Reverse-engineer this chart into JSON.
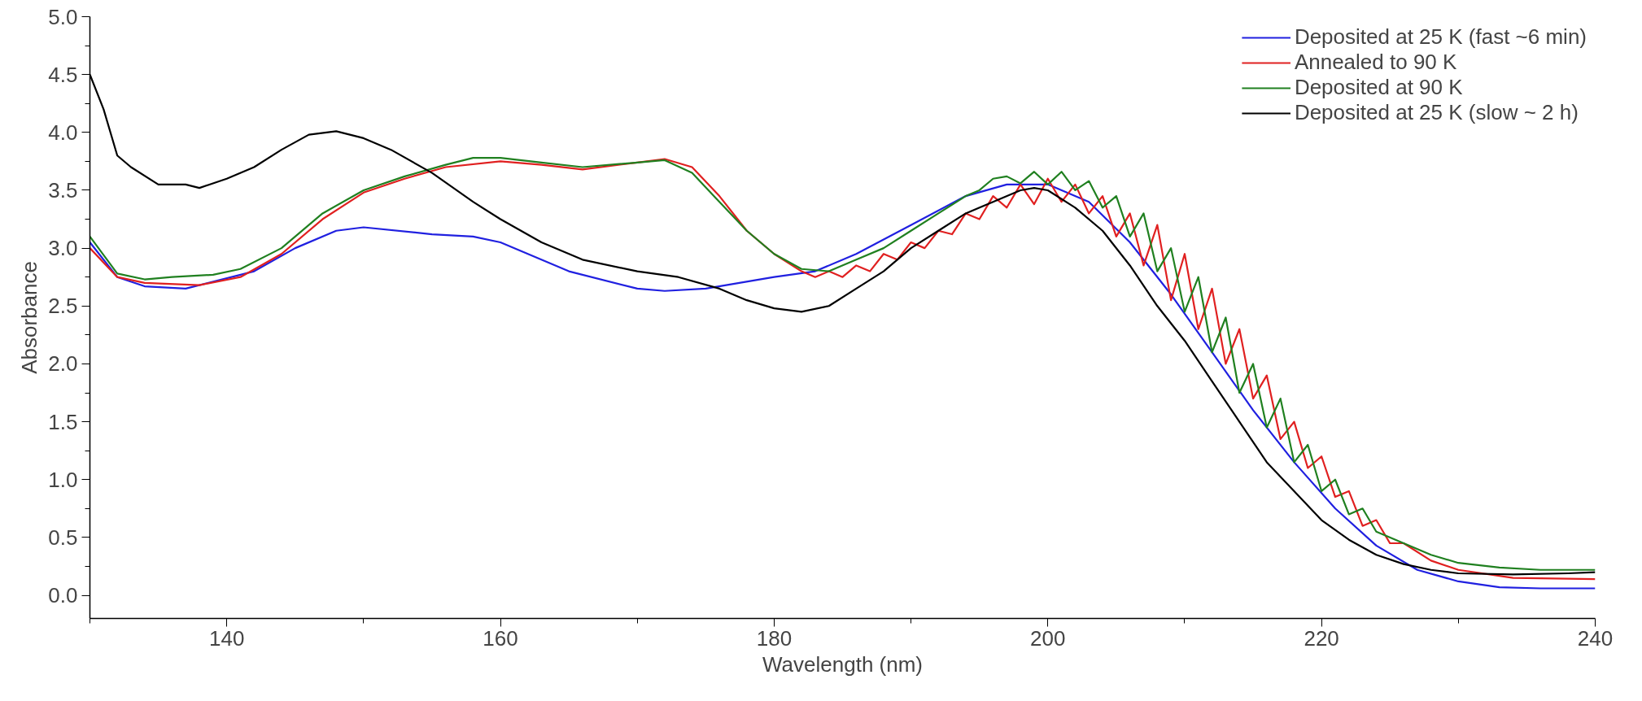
{
  "chart_data": {
    "type": "line",
    "xlabel": "Wavelength (nm)",
    "ylabel": "Absorbance",
    "xlim": [
      130,
      240
    ],
    "ylim": [
      -0.2,
      5.0
    ],
    "xticks": [
      {
        "value": 130,
        "label": null
      },
      140,
      {
        "value": 150,
        "label": null
      },
      160,
      {
        "value": 170,
        "label": null
      },
      180,
      {
        "value": 190,
        "label": null
      },
      200,
      {
        "value": 210,
        "label": null
      },
      220,
      {
        "value": 230,
        "label": null
      },
      240
    ],
    "yticks": [
      {
        "value": 0,
        "label": "0.0"
      },
      {
        "value": 0.25,
        "label": null
      },
      0.5,
      {
        "value": 0.75,
        "label": null
      },
      {
        "value": 1,
        "label": "1.0"
      },
      {
        "value": 1.25,
        "label": null
      },
      1.5,
      {
        "value": 1.75,
        "label": null
      },
      {
        "value": 2,
        "label": "2.0"
      },
      {
        "value": 2.25,
        "label": null
      },
      2.5,
      {
        "value": 2.75,
        "label": null
      },
      {
        "value": 3,
        "label": "3.0"
      },
      {
        "value": 3.25,
        "label": null
      },
      3.5,
      {
        "value": 3.75,
        "label": null
      },
      {
        "value": 4,
        "label": "4.0"
      },
      {
        "value": 4.25,
        "label": null
      },
      4.5,
      {
        "value": 4.75,
        "label": null
      },
      {
        "value": 5,
        "label": "5.0"
      }
    ],
    "grid": false,
    "legend": "top right",
    "line_style": "solid",
    "marker": "none",
    "series": [
      {
        "name": "Deposited at 25 K (fast ~6 min)",
        "color": "#2020e0",
        "x": [
          130,
          132,
          134,
          137,
          142,
          145,
          148,
          150,
          155,
          158,
          160,
          165,
          170,
          172,
          175,
          180,
          183,
          186,
          190,
          194,
          197,
          200,
          203,
          206,
          209,
          212,
          215,
          218,
          221,
          224,
          227,
          230,
          233,
          236,
          240
        ],
        "values": [
          3.05,
          2.75,
          2.67,
          2.65,
          2.8,
          3.0,
          3.15,
          3.18,
          3.12,
          3.1,
          3.05,
          2.8,
          2.65,
          2.63,
          2.65,
          2.75,
          2.8,
          2.95,
          3.2,
          3.45,
          3.55,
          3.55,
          3.4,
          3.05,
          2.6,
          2.1,
          1.6,
          1.15,
          0.75,
          0.43,
          0.22,
          0.12,
          0.07,
          0.06,
          0.06
        ]
      },
      {
        "name": "Annealed to 90 K",
        "color": "#e02020",
        "x": [
          130,
          132,
          134,
          138,
          141,
          144,
          147,
          150,
          153,
          156,
          160,
          163,
          166,
          170,
          172,
          174,
          176,
          178,
          180,
          182,
          183,
          184,
          185,
          186,
          187,
          188,
          189,
          190,
          191,
          192,
          193,
          194,
          195,
          196,
          197,
          198,
          199,
          200,
          201,
          202,
          203,
          204,
          205,
          206,
          207,
          208,
          209,
          210,
          211,
          212,
          213,
          214,
          215,
          216,
          217,
          218,
          219,
          220,
          221,
          222,
          223,
          224,
          225,
          226,
          228,
          230,
          234,
          240
        ],
        "values": [
          3.0,
          2.75,
          2.7,
          2.68,
          2.75,
          2.95,
          3.25,
          3.48,
          3.6,
          3.7,
          3.75,
          3.72,
          3.68,
          3.74,
          3.77,
          3.7,
          3.45,
          3.15,
          2.95,
          2.8,
          2.75,
          2.8,
          2.75,
          2.85,
          2.8,
          2.95,
          2.9,
          3.05,
          3.0,
          3.15,
          3.12,
          3.3,
          3.25,
          3.45,
          3.35,
          3.55,
          3.38,
          3.6,
          3.4,
          3.55,
          3.3,
          3.45,
          3.1,
          3.3,
          2.85,
          3.2,
          2.55,
          2.95,
          2.3,
          2.65,
          2.0,
          2.3,
          1.7,
          1.9,
          1.35,
          1.5,
          1.1,
          1.2,
          0.85,
          0.9,
          0.6,
          0.65,
          0.45,
          0.45,
          0.3,
          0.22,
          0.15,
          0.14
        ]
      },
      {
        "name": "Deposited at 90 K",
        "color": "#208020",
        "x": [
          130,
          132,
          134,
          136,
          139,
          141,
          144,
          147,
          150,
          153,
          156,
          158,
          160,
          163,
          166,
          170,
          172,
          174,
          176,
          178,
          180,
          182,
          184,
          186,
          188,
          190,
          192,
          194,
          195,
          196,
          197,
          198,
          199,
          200,
          201,
          202,
          203,
          204,
          205,
          206,
          207,
          208,
          209,
          210,
          211,
          212,
          213,
          214,
          215,
          216,
          217,
          218,
          219,
          220,
          221,
          222,
          223,
          224,
          226,
          228,
          230,
          233,
          236,
          240
        ],
        "values": [
          3.1,
          2.78,
          2.73,
          2.75,
          2.77,
          2.82,
          3.0,
          3.3,
          3.5,
          3.62,
          3.72,
          3.78,
          3.78,
          3.74,
          3.7,
          3.74,
          3.76,
          3.65,
          3.4,
          3.15,
          2.95,
          2.82,
          2.8,
          2.9,
          3.0,
          3.15,
          3.3,
          3.45,
          3.5,
          3.6,
          3.62,
          3.56,
          3.66,
          3.55,
          3.66,
          3.5,
          3.58,
          3.35,
          3.45,
          3.1,
          3.3,
          2.8,
          3.0,
          2.45,
          2.75,
          2.1,
          2.4,
          1.75,
          2.0,
          1.45,
          1.7,
          1.15,
          1.3,
          0.9,
          1.0,
          0.7,
          0.75,
          0.55,
          0.45,
          0.35,
          0.28,
          0.24,
          0.22,
          0.22
        ]
      },
      {
        "name": "Deposited at 25 K (slow ~ 2 h)",
        "color": "#000000",
        "x": [
          130,
          131,
          132,
          133,
          135,
          137,
          138,
          140,
          142,
          144,
          146,
          148,
          150,
          152,
          155,
          158,
          160,
          163,
          166,
          170,
          173,
          176,
          178,
          180,
          182,
          184,
          186,
          188,
          190,
          192,
          194,
          196,
          198,
          199,
          200,
          202,
          204,
          206,
          208,
          210,
          212,
          214,
          216,
          218,
          220,
          222,
          224,
          226,
          228,
          230,
          234,
          238,
          240
        ],
        "values": [
          4.5,
          4.2,
          3.8,
          3.7,
          3.55,
          3.55,
          3.52,
          3.6,
          3.7,
          3.85,
          3.98,
          4.01,
          3.95,
          3.85,
          3.65,
          3.4,
          3.25,
          3.05,
          2.9,
          2.8,
          2.75,
          2.65,
          2.55,
          2.48,
          2.45,
          2.5,
          2.65,
          2.8,
          3.0,
          3.15,
          3.3,
          3.4,
          3.5,
          3.52,
          3.5,
          3.35,
          3.15,
          2.85,
          2.5,
          2.2,
          1.85,
          1.5,
          1.15,
          0.9,
          0.65,
          0.48,
          0.35,
          0.27,
          0.22,
          0.19,
          0.18,
          0.19,
          0.2
        ]
      }
    ]
  }
}
